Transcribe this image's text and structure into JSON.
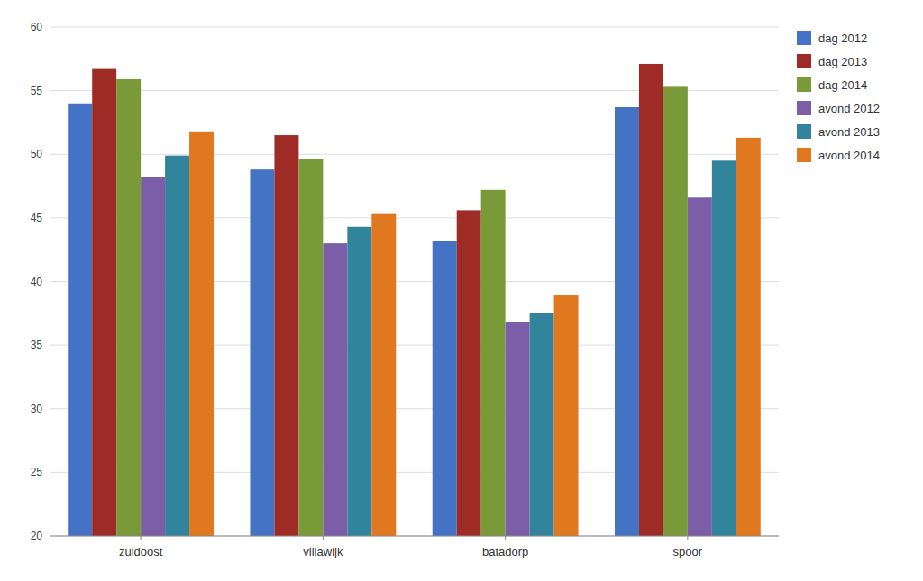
{
  "chart_data": {
    "type": "bar",
    "categories": [
      "zuidoost",
      "villawijk",
      "batadorp",
      "spoor"
    ],
    "series": [
      {
        "name": "dag 2012",
        "color": "#4472C4",
        "values": [
          54.0,
          48.8,
          43.2,
          53.7
        ]
      },
      {
        "name": "dag 2013",
        "color": "#9E2B25",
        "values": [
          56.7,
          51.5,
          45.6,
          57.1
        ]
      },
      {
        "name": "dag 2014",
        "color": "#7A9A3A",
        "values": [
          55.9,
          49.6,
          47.2,
          55.3
        ]
      },
      {
        "name": "avond 2012",
        "color": "#7B5EA7",
        "values": [
          48.2,
          43.0,
          36.8,
          46.6
        ]
      },
      {
        "name": "avond 2013",
        "color": "#31849B",
        "values": [
          49.9,
          44.3,
          37.5,
          49.5
        ]
      },
      {
        "name": "avond 2014",
        "color": "#E07820",
        "values": [
          51.8,
          45.3,
          38.9,
          51.3
        ]
      }
    ],
    "ylim": [
      20,
      60
    ],
    "yticks": [
      20,
      25,
      30,
      35,
      40,
      45,
      50,
      55,
      60
    ],
    "grid": true,
    "legend": "right"
  }
}
